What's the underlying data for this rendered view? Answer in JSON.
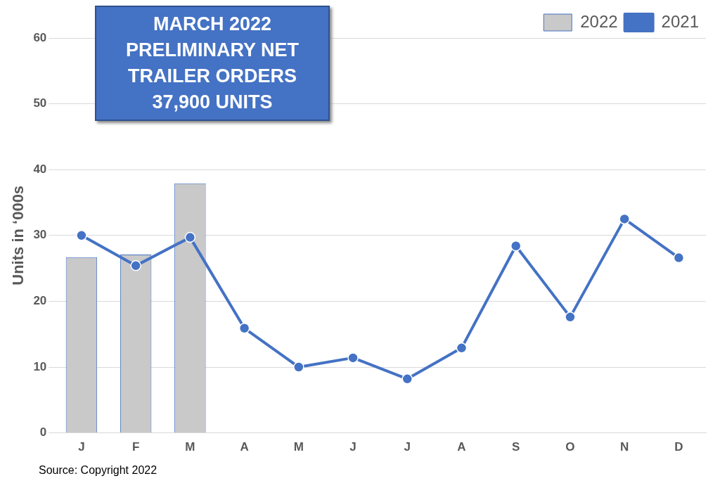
{
  "chart_data": {
    "type": "bar",
    "annotations": [
      "MARCH 2022 PRELIMINARY NET TRAILER ORDERS 37,900  UNITS",
      "Source: Copyright 2022"
    ],
    "ylabel": "Units in ‘000s",
    "categories": [
      "J",
      "F",
      "M",
      "A",
      "M",
      "J",
      "J",
      "A",
      "S",
      "O",
      "N",
      "D"
    ],
    "series": [
      {
        "name": "2022",
        "color": "#c9c9c9",
        "values": [
          26.7,
          27.1,
          37.9,
          null,
          null,
          null,
          null,
          null,
          null,
          null,
          null,
          null
        ]
      },
      {
        "name": "2021",
        "type": "line",
        "color": "#4472c4",
        "marker": "circle",
        "values": [
          30.0,
          25.4,
          29.7,
          15.9,
          10.0,
          11.4,
          8.2,
          12.9,
          28.4,
          17.6,
          32.5,
          26.6
        ]
      }
    ],
    "ylim": [
      0,
      60
    ],
    "yticks": [
      0,
      10,
      20,
      30,
      40,
      50,
      60
    ],
    "grid": "y",
    "legend": "top right"
  }
}
